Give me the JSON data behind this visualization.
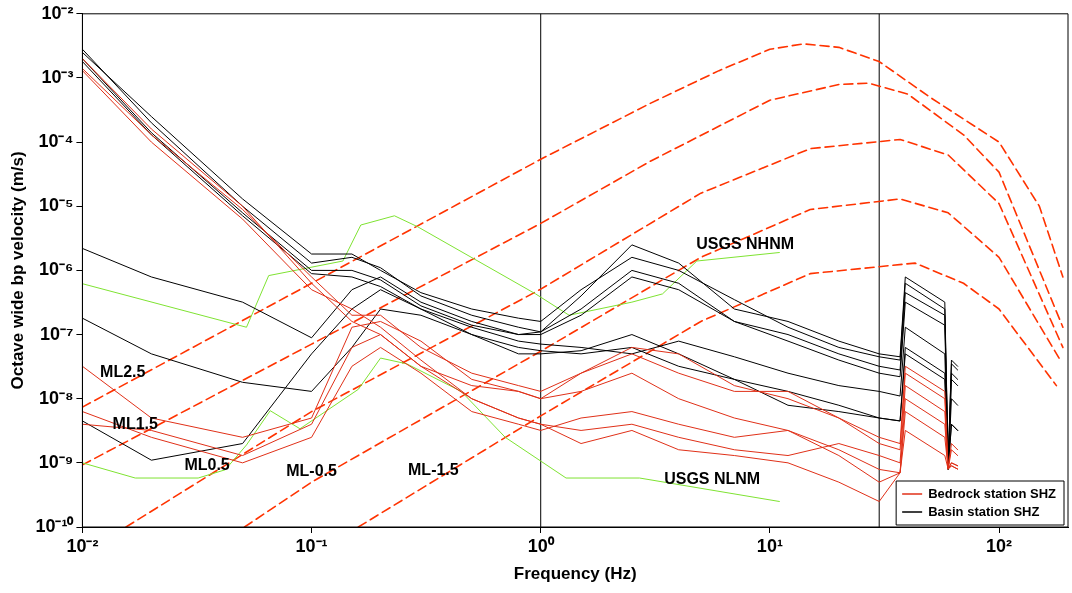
{
  "chart_data": {
    "type": "line",
    "xlabel": "Frequency (Hz)",
    "ylabel": "Octave wide bp velocity (m/s)",
    "log": "xy",
    "grid": false,
    "marker": "none",
    "line_style": "solid",
    "legend": "bottom right",
    "xlim": [
      0.01,
      200
    ],
    "ylim": [
      1e-10,
      0.01
    ],
    "xticks": [
      {
        "value": 0.01,
        "label": "10⁻²"
      },
      {
        "value": 0.1,
        "label": "10⁻¹"
      },
      {
        "value": 1,
        "label": "10⁰"
      },
      {
        "value": 10,
        "label": "10¹"
      },
      {
        "value": 100,
        "label": "10²"
      }
    ],
    "yticks": [
      {
        "value": 1e-10,
        "label": "10⁻¹⁰"
      },
      {
        "value": 1e-09,
        "label": "10⁻⁹"
      },
      {
        "value": 1e-08,
        "label": "10⁻⁸"
      },
      {
        "value": 1e-07,
        "label": "10⁻⁷"
      },
      {
        "value": 1e-06,
        "label": "10⁻⁶"
      },
      {
        "value": 1e-05,
        "label": "10⁻⁵"
      },
      {
        "value": 0.0001,
        "label": "10⁻⁴"
      },
      {
        "value": 0.001,
        "label": "10⁻³"
      },
      {
        "value": 0.01,
        "label": "10⁻²"
      }
    ],
    "x": [
      0.01,
      0.02,
      0.05,
      0.1,
      0.15,
      0.2,
      0.3,
      0.5,
      0.8,
      1,
      1.5,
      2.5,
      4,
      7,
      12,
      20,
      30,
      37,
      39,
      58,
      60,
      62,
      66
    ],
    "series": [
      {
        "name": "Bedrock station SHZ",
        "color": "#e03018",
        "values": [
          0.002,
          0.00016,
          1e-05,
          6.3e-07,
          1.6e-07,
          1e-07,
          3.2e-08,
          1.6e-08,
          1.3e-08,
          1e-08,
          1.3e-08,
          2.5e-08,
          1e-08,
          5e-09,
          3.2e-09,
          1.3e-09,
          5e-10,
          7e-10,
          6.3e-09,
          2.5e-09,
          8e-10,
          1e-09,
          9e-10
        ]
      },
      {
        "color": "#e03018",
        "values": [
          0.0014,
          0.00013,
          8.9e-06,
          7.9e-07,
          2e-07,
          2e-07,
          6.3e-08,
          2.5e-08,
          1.6e-08,
          1.3e-08,
          2.5e-08,
          6.3e-08,
          5e-08,
          1.6e-08,
          1e-08,
          5e-09,
          2e-09,
          1.6e-09,
          2.5e-08,
          1e-08,
          8e-10,
          1.6e-09,
          1.3e-09
        ]
      },
      {
        "color": "#e03018",
        "values": [
          0.0013,
          0.0001,
          6.3e-06,
          5e-07,
          2.5e-07,
          1.3e-07,
          4e-08,
          1e-08,
          5e-09,
          4e-09,
          3.2e-09,
          4e-09,
          2.5e-09,
          1.6e-09,
          1.3e-09,
          2e-09,
          1.3e-09,
          1e-09,
          1.6e-08,
          6.3e-09,
          8e-10,
          1e-09,
          9e-10
        ]
      },
      {
        "color": "#e03018",
        "values": [
          3.2e-08,
          5e-09,
          2.5e-09,
          5e-09,
          1.3e-07,
          1.6e-07,
          7.9e-08,
          2e-08,
          1.3e-08,
          1e-08,
          2.5e-08,
          5e-08,
          2.5e-08,
          1.3e-08,
          1.3e-08,
          5e-09,
          2.5e-09,
          2e-09,
          3.2e-08,
          1.3e-08,
          8e-10,
          2e-09,
          1.6e-09
        ]
      },
      {
        "color": "#e03018",
        "values": [
          4e-09,
          3.2e-09,
          1.3e-09,
          4e-09,
          6.3e-08,
          1e-07,
          3.2e-08,
          1e-08,
          5e-09,
          4e-09,
          2e-09,
          3.2e-09,
          1.6e-09,
          1.3e-09,
          1e-09,
          5e-10,
          2.5e-10,
          7e-10,
          3.2e-09,
          1.3e-09,
          8e-10,
          9e-10,
          8e-10
        ]
      },
      {
        "color": "#e03018",
        "values": [
          6.3e-09,
          2.5e-09,
          1e-09,
          2.5e-09,
          3.2e-08,
          6.3e-08,
          2.5e-08,
          6.3e-09,
          4e-09,
          3.2e-09,
          5e-09,
          6.3e-09,
          4e-09,
          2.5e-09,
          3.2e-09,
          1.6e-09,
          7.9e-10,
          7e-10,
          1e-08,
          4e-09,
          8e-10,
          9e-10,
          8e-10
        ]
      },
      {
        "name": "Basin station SHZ",
        "color": "#000000",
        "values": [
          0.0028,
          0.0002,
          1e-05,
          1.3e-06,
          1.6e-06,
          1.1e-06,
          4e-07,
          2e-07,
          1.3e-07,
          1.1e-07,
          4e-07,
          2.5e-06,
          1.3e-06,
          2.5e-07,
          1.6e-07,
          7.9e-08,
          5e-08,
          4.5e-08,
          7.9e-07,
          3.2e-07,
          1e-09,
          4e-08,
          3.2e-08
        ]
      },
      {
        "color": "#000000",
        "values": [
          0.002,
          0.00014,
          7.9e-06,
          1e-06,
          1e-06,
          7.1e-07,
          2.8e-07,
          1.4e-07,
          1e-07,
          1.1e-07,
          2.5e-07,
          1e-06,
          6.3e-07,
          1.6e-07,
          1e-07,
          5e-08,
          3.2e-08,
          2.8e-08,
          4.5e-07,
          2e-07,
          7.9e-10,
          2.5e-08,
          2e-08
        ]
      },
      {
        "color": "#000000",
        "values": [
          0.0025,
          0.00025,
          1.3e-05,
          1.8e-06,
          1.8e-06,
          1e-06,
          4.5e-07,
          2.5e-07,
          1.8e-07,
          1.6e-07,
          5e-07,
          1.6e-06,
          1e-06,
          3.5e-07,
          1.3e-07,
          6.3e-08,
          4.5e-08,
          4e-08,
          6.3e-07,
          2.5e-07,
          1e-09,
          3.5e-08,
          2.8e-08
        ]
      },
      {
        "color": "#000000",
        "values": [
          0.0018,
          0.00013,
          7.1e-06,
          8.9e-07,
          7.9e-07,
          5.6e-07,
          2.5e-07,
          1.3e-07,
          7.9e-08,
          7.1e-08,
          6.3e-08,
          5e-08,
          7.9e-08,
          4.5e-08,
          2.5e-08,
          1.6e-08,
          1.3e-08,
          1.1e-08,
          1.3e-07,
          5e-08,
          8e-10,
          1e-08,
          7.9e-09
        ]
      },
      {
        "color": "#000000",
        "values": [
          2.2e-06,
          7.9e-07,
          3.2e-07,
          8.9e-08,
          5e-07,
          7.9e-07,
          3.2e-07,
          1.6e-07,
          1e-07,
          1e-07,
          2e-07,
          7.9e-07,
          5e-07,
          1.6e-07,
          7.9e-08,
          4e-08,
          2.5e-08,
          2.2e-08,
          3.2e-07,
          1.4e-07,
          7.9e-10,
          2e-08,
          1.6e-08
        ]
      },
      {
        "color": "#000000",
        "values": [
          1.8e-07,
          5e-08,
          1.8e-08,
          1.3e-08,
          6.3e-08,
          2.5e-07,
          2e-07,
          1e-07,
          5e-08,
          5e-08,
          5.6e-08,
          1e-07,
          5e-08,
          2e-08,
          7.9e-09,
          6.3e-09,
          5e-09,
          4.5e-09,
          6.3e-08,
          2.5e-08,
          8e-10,
          4e-09,
          3.2e-09
        ]
      },
      {
        "color": "#000000",
        "values": [
          4.5e-09,
          1.1e-09,
          2e-09,
          5e-08,
          2.5e-07,
          5e-07,
          2.5e-07,
          1e-07,
          6.3e-08,
          5.6e-08,
          5e-08,
          6.3e-08,
          3.2e-08,
          2e-08,
          1.3e-08,
          7.9e-09,
          5e-09,
          4.5e-09,
          5e-08,
          2e-08,
          8e-10,
          4e-09,
          3.2e-09
        ]
      },
      {
        "color": "#7fe332",
        "x": [
          0.01,
          0.052,
          0.065,
          0.137,
          0.164,
          0.23,
          0.29,
          0.95,
          1.33,
          2.5,
          3.4,
          4.8,
          11
        ],
        "values": [
          6.2e-07,
          1.3e-07,
          8.3e-07,
          1.4e-06,
          5.1e-06,
          7.1e-06,
          4.8e-06,
          4.3e-07,
          2e-07,
          3.2e-07,
          4.3e-07,
          1.4e-06,
          1.9e-06
        ]
      },
      {
        "color": "#7fe332",
        "x": [
          0.01,
          0.017,
          0.032,
          0.042,
          0.052,
          0.066,
          0.089,
          0.16,
          0.2,
          0.26,
          0.45,
          0.7,
          1.29,
          2.7,
          11
        ],
        "values": [
          1e-09,
          5.8e-10,
          5.8e-10,
          7.8e-10,
          1.9e-09,
          6.5e-09,
          3.4e-09,
          1.4e-08,
          4.3e-08,
          3.5e-08,
          1.3e-08,
          2.5e-09,
          5.8e-10,
          5.8e-10,
          2.5e-10
        ]
      },
      {
        "color": "#ff3300",
        "line_style": "dashed",
        "x": [
          0.01,
          0.1,
          1,
          3,
          6,
          10,
          14,
          20,
          30,
          50,
          100,
          150,
          190
        ],
        "values": [
          7.4e-09,
          6.3e-07,
          5.4e-05,
          0.0004,
          0.0013,
          0.0028,
          0.0034,
          0.003,
          0.0018,
          0.0005,
          0.0001,
          1e-05,
          7.9e-07
        ]
      },
      {
        "color": "#ff3300",
        "line_style": "dashed",
        "x": [
          0.01,
          0.1,
          1,
          3,
          10,
          20,
          27,
          40,
          70,
          100,
          190
        ],
        "values": [
          9.3e-10,
          7.1e-08,
          5.4e-06,
          5e-05,
          0.00045,
          0.00079,
          0.00083,
          0.00056,
          0.00013,
          3.4e-05,
          1.3e-07
        ]
      },
      {
        "color": "#ff3300",
        "line_style": "dashed",
        "x": [
          0.0155,
          0.1,
          1,
          5,
          15,
          37,
          60,
          100,
          190
        ],
        "values": [
          1e-10,
          6.3e-09,
          5.1e-07,
          1.6e-05,
          7.9e-05,
          0.00011,
          6.3e-05,
          1.1e-05,
          6.3e-08
        ]
      },
      {
        "color": "#ff3300",
        "line_style": "dashed",
        "x": [
          0.051,
          0.1,
          1,
          5,
          15,
          37,
          60,
          100,
          185
        ],
        "values": [
          1e-10,
          5e-10,
          5.5e-08,
          1.6e-06,
          8.9e-06,
          1.3e-05,
          7.9e-06,
          1.6e-06,
          4e-08
        ]
      },
      {
        "color": "#ff3300",
        "line_style": "dashed",
        "x": [
          0.16,
          1,
          5,
          15,
          43,
          70,
          100,
          178
        ],
        "values": [
          1e-10,
          5.4e-09,
          1.6e-07,
          8.9e-07,
          1.3e-06,
          6.3e-07,
          2.5e-07,
          1.6e-08
        ]
      }
    ],
    "ref_lines": [
      {
        "axis": "x",
        "value": 1,
        "color": "#000000"
      },
      {
        "axis": "x",
        "value": 30,
        "color": "#000000"
      }
    ],
    "annotations": [
      {
        "text": "USGS NHNM",
        "x": 7.8,
        "y": 1.7e-06
      },
      {
        "text": "USGS NLNM",
        "x": 5.6,
        "y": 3.7e-10
      },
      {
        "text": "ML2.5",
        "x": 0.015,
        "y": 1.7e-08
      },
      {
        "text": "ML1.5",
        "x": 0.017,
        "y": 2.7e-09
      },
      {
        "text": "ML0.5",
        "x": 0.035,
        "y": 6e-10
      },
      {
        "text": "ML-0.5",
        "x": 0.1,
        "y": 5e-10
      },
      {
        "text": "ML-1.5",
        "x": 0.34,
        "y": 5.1e-10
      }
    ]
  }
}
